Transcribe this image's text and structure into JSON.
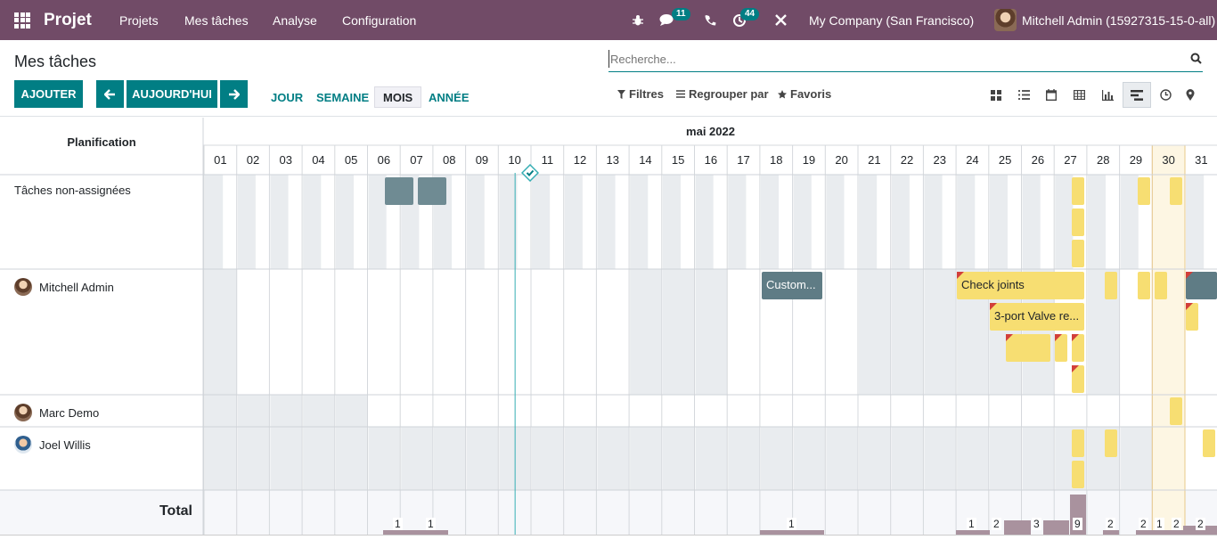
{
  "topbar": {
    "app_name": "Projet",
    "menu": [
      "Projets",
      "Mes tâches",
      "Analyse",
      "Configuration"
    ],
    "chat_count": "11",
    "activity_count": "44",
    "company": "My Company (San Francisco)",
    "user": "Mitchell Admin (15927315-15-0-all)"
  },
  "control": {
    "title": "Mes tâches",
    "search_placeholder": "Recherche...",
    "add_label": "AJOUTER",
    "today_label": "AUJOURD'HUI",
    "scales": [
      "JOUR",
      "SEMAINE",
      "MOIS",
      "ANNÉE"
    ],
    "active_scale": "MOIS",
    "filters_label": "Filtres",
    "groupby_label": "Regrouper par",
    "favorites_label": "Favoris",
    "views": [
      "kanban-icon",
      "list-icon",
      "calendar-icon",
      "pivot-icon",
      "graph-icon",
      "gantt-icon",
      "activity-icon",
      "map-icon"
    ],
    "active_view": "gantt-icon"
  },
  "gantt": {
    "planning_label": "Planification",
    "month_label": "mai 2022",
    "days": [
      "01",
      "02",
      "03",
      "04",
      "05",
      "06",
      "07",
      "08",
      "09",
      "10",
      "11",
      "12",
      "13",
      "14",
      "15",
      "16",
      "17",
      "18",
      "19",
      "20",
      "21",
      "22",
      "23",
      "24",
      "25",
      "26",
      "27",
      "28",
      "29",
      "30",
      "31"
    ],
    "today": "30",
    "now_marker_day": "10",
    "total_label": "Total",
    "rows": [
      {
        "label": "Tâches non-assignées",
        "has_avatar": false
      },
      {
        "label": "Mitchell Admin",
        "has_avatar": true
      },
      {
        "label": "Marc Demo",
        "has_avatar": true
      },
      {
        "label": "Joel Willis",
        "has_avatar": true
      }
    ],
    "task_labels": {
      "customer": "Custom...",
      "check_joints": "Check joints",
      "valve": "3-port Valve re..."
    },
    "totals": [
      "1",
      "1",
      "1",
      "1",
      "2",
      "3",
      "9",
      "2",
      "2",
      "1",
      "2",
      "2"
    ]
  },
  "colors": {
    "brand": "#714b67",
    "accent": "#017e84",
    "task_grey": "#5f7c85",
    "task_yellow": "#f7de72",
    "total_bar": "#a9929e",
    "today_bg": "#fdf6e3"
  }
}
